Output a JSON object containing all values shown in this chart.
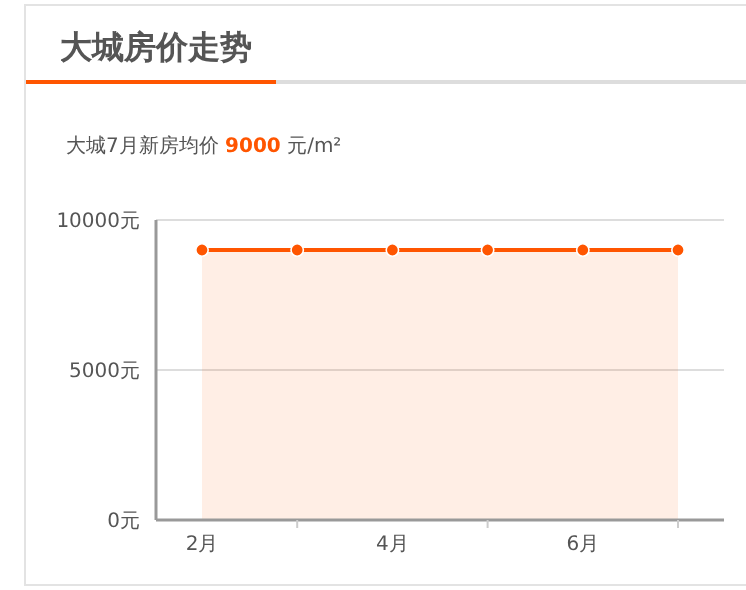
{
  "chart_data": {
    "type": "area",
    "title": "大城房价走势",
    "subtitle": "大城7月新房均价 9000 元/m²",
    "categories": [
      "2月",
      null,
      "4月",
      null,
      "6月",
      null
    ],
    "series": [
      {
        "color": "#ff5500",
        "values": [
          9000,
          9000,
          9000,
          9000,
          9000,
          9000
        ]
      }
    ],
    "ylim": [
      0,
      10000
    ],
    "yticks": [
      {
        "value": 0,
        "label": "0元"
      },
      {
        "value": 5000,
        "label": "5000元"
      },
      {
        "value": 10000,
        "label": "10000元"
      }
    ],
    "grid": "y",
    "marker": "circle"
  }
}
